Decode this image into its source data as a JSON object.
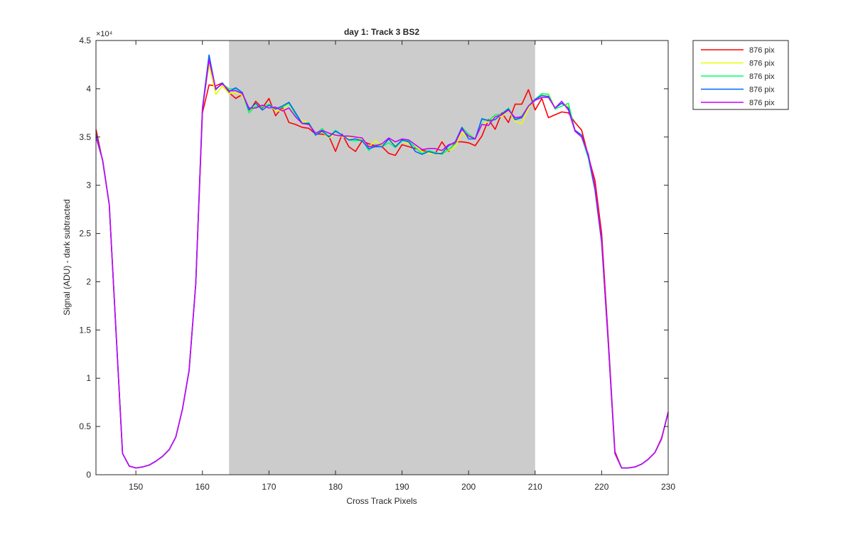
{
  "chart_data": {
    "type": "line",
    "title": "day 1: Track 3  BS2",
    "xlabel": "Cross Track Pixels",
    "ylabel": "Signal (ADU) - dark subtracted",
    "y_exponent_label": "×10⁴",
    "xlim": [
      144,
      230
    ],
    "ylim": [
      0,
      45000
    ],
    "x_ticks": [
      150,
      160,
      170,
      180,
      190,
      200,
      210,
      220,
      230
    ],
    "x_tick_labels": [
      "150",
      "160",
      "170",
      "180",
      "190",
      "200",
      "210",
      "220",
      "230"
    ],
    "y_ticks": [
      0,
      5000,
      10000,
      15000,
      20000,
      25000,
      30000,
      35000,
      40000,
      45000
    ],
    "y_tick_labels": [
      "0",
      "0.5",
      "1",
      "1.5",
      "2",
      "2.5",
      "3",
      "3.5",
      "4",
      "4.5"
    ],
    "shaded_region": {
      "x": [
        164,
        210
      ],
      "color": "#cccccc"
    },
    "grid": false,
    "legend_position": "outside top-right",
    "x": [
      144,
      145,
      146,
      147,
      148,
      149,
      150,
      151,
      152,
      153,
      154,
      155,
      156,
      157,
      158,
      159,
      160,
      161,
      162,
      163,
      164,
      165,
      166,
      167,
      168,
      169,
      170,
      171,
      172,
      173,
      174,
      175,
      176,
      177,
      178,
      179,
      180,
      181,
      182,
      183,
      184,
      185,
      186,
      187,
      188,
      189,
      190,
      191,
      192,
      193,
      194,
      195,
      196,
      197,
      198,
      199,
      200,
      201,
      202,
      203,
      204,
      205,
      206,
      207,
      208,
      209,
      210,
      211,
      212,
      213,
      214,
      215,
      216,
      217,
      218,
      219,
      220,
      221,
      222,
      223,
      224,
      225,
      226,
      227,
      228,
      229,
      230
    ],
    "series": [
      {
        "name": "876 pix",
        "color": "#ff0000",
        "values": [
          35800,
          32500,
          28000,
          15000,
          2200,
          900,
          700,
          800,
          1000,
          1400,
          1900,
          2600,
          3900,
          6800,
          10800,
          19800,
          37500,
          40400,
          40300,
          40600,
          39600,
          39000,
          39400,
          37600,
          38700,
          38000,
          39000,
          37200,
          38100,
          36500,
          36300,
          36000,
          35900,
          35300,
          35300,
          35100,
          33500,
          35300,
          34000,
          33500,
          34600,
          34300,
          34100,
          34000,
          33300,
          33100,
          34200,
          34000,
          33800,
          33600,
          33500,
          33300,
          34500,
          33500,
          34500,
          34500,
          34400,
          34100,
          35100,
          36800,
          35800,
          37500,
          36500,
          38400,
          38400,
          39900,
          37800,
          39000,
          37000,
          37300,
          37600,
          37500,
          36500,
          35700,
          33000,
          30500,
          25000,
          14000,
          2400,
          700,
          700,
          800,
          1100,
          1600,
          2300,
          3800,
          6400
        ]
      },
      {
        "name": "876 pix",
        "color": "#e6ff00",
        "values": [
          35000,
          32600,
          28000,
          15000,
          2200,
          900,
          700,
          800,
          1000,
          1400,
          1900,
          2600,
          3900,
          6800,
          10800,
          19800,
          38000,
          42500,
          39400,
          40300,
          39500,
          39600,
          39300,
          37600,
          38300,
          37800,
          38400,
          37700,
          37700,
          38500,
          37100,
          36700,
          36500,
          35300,
          35500,
          34900,
          35300,
          35000,
          34900,
          35000,
          34700,
          34000,
          34600,
          34100,
          34900,
          34100,
          34600,
          34300,
          34000,
          33500,
          33300,
          33300,
          33500,
          33600,
          34000,
          35500,
          34800,
          34800,
          36300,
          36600,
          37200,
          37100,
          37800,
          36600,
          36400,
          38000,
          38900,
          39400,
          39500,
          38000,
          38500,
          38200,
          35700,
          35000,
          33000,
          29500,
          24000,
          13500,
          2200,
          700,
          700,
          800,
          1100,
          1600,
          2300,
          3700,
          6500
        ]
      },
      {
        "name": "876 pix",
        "color": "#00ff66",
        "values": [
          35200,
          32600,
          28000,
          15000,
          2200,
          900,
          700,
          800,
          1000,
          1400,
          1900,
          2600,
          3900,
          6800,
          10800,
          19800,
          38000,
          43000,
          40000,
          40500,
          40000,
          40000,
          39600,
          37500,
          38200,
          38100,
          38400,
          37900,
          38100,
          38500,
          37300,
          36400,
          36500,
          35300,
          35900,
          35000,
          35700,
          35200,
          34700,
          34600,
          34700,
          33600,
          34200,
          34000,
          34400,
          33900,
          34600,
          34600,
          33900,
          33300,
          33600,
          33400,
          33200,
          33700,
          34300,
          36000,
          35300,
          34800,
          36800,
          36700,
          37300,
          37400,
          38000,
          36800,
          37200,
          38200,
          38900,
          39500,
          39400,
          37900,
          38200,
          38500,
          35600,
          35000,
          32800,
          29500,
          24000,
          13500,
          2200,
          700,
          700,
          800,
          1100,
          1600,
          2300,
          3700,
          6500
        ]
      },
      {
        "name": "876 pix",
        "color": "#0066ff",
        "values": [
          35300,
          32600,
          28000,
          15000,
          2200,
          900,
          700,
          800,
          1000,
          1400,
          1900,
          2600,
          3900,
          6800,
          10800,
          19800,
          38000,
          43500,
          39900,
          40600,
          39700,
          40100,
          39600,
          37800,
          38500,
          37800,
          38300,
          37900,
          38200,
          38600,
          37500,
          36400,
          36400,
          35200,
          35600,
          35000,
          35600,
          35200,
          34700,
          34800,
          34600,
          33800,
          34000,
          34000,
          34800,
          34000,
          34700,
          34500,
          33500,
          33200,
          33500,
          33300,
          33300,
          34100,
          34500,
          36000,
          34800,
          34800,
          36900,
          36700,
          36800,
          37400,
          37900,
          36800,
          37000,
          38200,
          38900,
          39300,
          39200,
          38000,
          38500,
          38000,
          35700,
          35200,
          33000,
          29600,
          24100,
          13600,
          2200,
          700,
          700,
          800,
          1100,
          1600,
          2300,
          3700,
          6500
        ]
      },
      {
        "name": "876 pix",
        "color": "#cc00ff",
        "values": [
          35000,
          32600,
          28000,
          15000,
          2200,
          900,
          700,
          800,
          1000,
          1400,
          1900,
          2600,
          3900,
          6800,
          10800,
          19800,
          37800,
          43000,
          40000,
          40500,
          39800,
          39800,
          39500,
          38000,
          38000,
          38300,
          38000,
          38100,
          37700,
          38000,
          37100,
          36400,
          36300,
          35400,
          35700,
          35400,
          35200,
          35100,
          35100,
          35000,
          34900,
          34000,
          34100,
          34300,
          34900,
          34500,
          34800,
          34700,
          34200,
          33700,
          33800,
          33800,
          33600,
          34200,
          34400,
          35800,
          35100,
          34800,
          36300,
          36200,
          37100,
          37300,
          37800,
          37000,
          37100,
          38200,
          38800,
          39100,
          39100,
          38000,
          38700,
          37800,
          35600,
          35000,
          33200,
          29800,
          24300,
          13600,
          2200,
          700,
          700,
          800,
          1100,
          1600,
          2300,
          3700,
          6500
        ]
      }
    ]
  }
}
